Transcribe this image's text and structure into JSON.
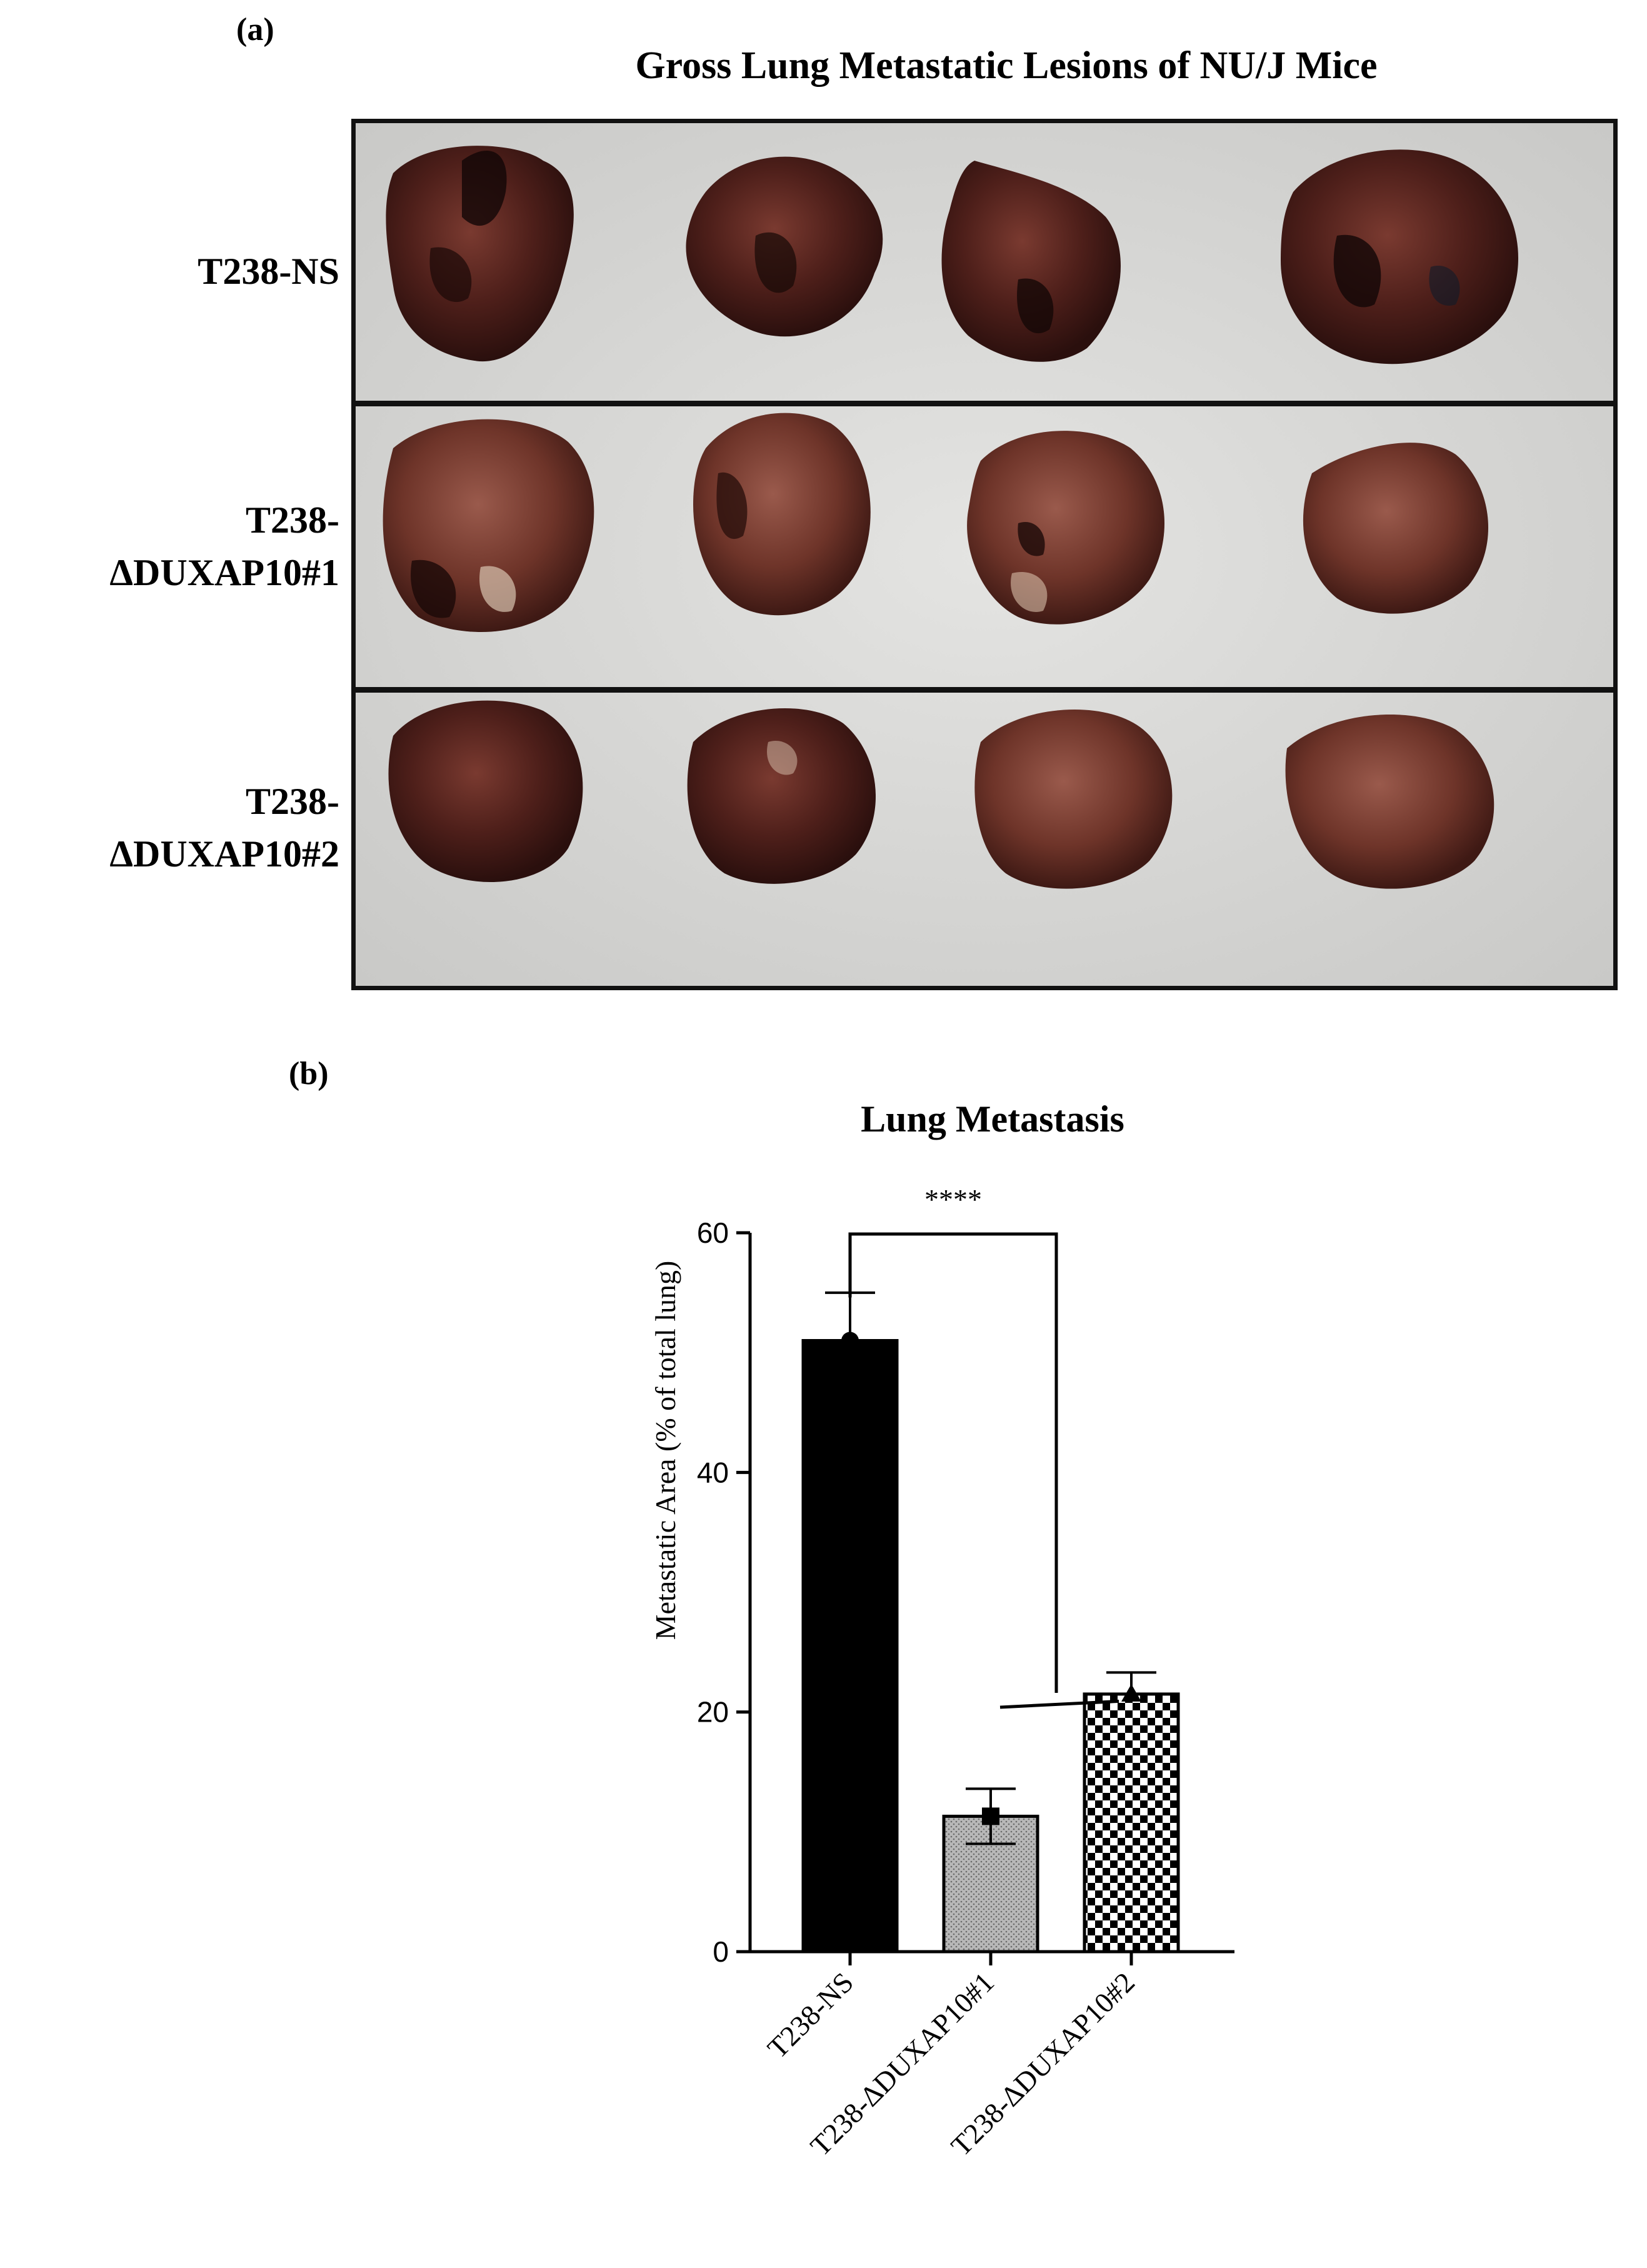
{
  "panel_a": {
    "label": "(a)",
    "title": "Gross Lung Metastatic Lesions of NU/J Mice",
    "rows": [
      {
        "label": "T238-NS"
      },
      {
        "label_line1": "T238-",
        "label_line2": "ΔDUXAP10#1"
      },
      {
        "label_line1": "T238-",
        "label_line2": "ΔDUXAP10#2"
      }
    ]
  },
  "panel_b": {
    "label": "(b)"
  },
  "chart_data": {
    "type": "bar",
    "title": "Lung Metastasis",
    "xlabel": "",
    "ylabel": "Metastatic Area (% of total lung)",
    "ylim": [
      0,
      60
    ],
    "yticks": [
      0,
      20,
      40,
      60
    ],
    "categories": [
      "T238-NS",
      "T238-ΔDUXAP10#1",
      "T238-ΔDUXAP10#2"
    ],
    "values": [
      51,
      11.3,
      21.5
    ],
    "errors": [
      4,
      2.3,
      1.8
    ],
    "fills": [
      "solid-black",
      "fine-dotted-gray",
      "checkerboard"
    ],
    "significance": {
      "label": "****",
      "from": "T238-NS",
      "to": [
        "T238-ΔDUXAP10#1",
        "T238-ΔDUXAP10#2"
      ]
    },
    "grid": false,
    "legend": "none"
  }
}
